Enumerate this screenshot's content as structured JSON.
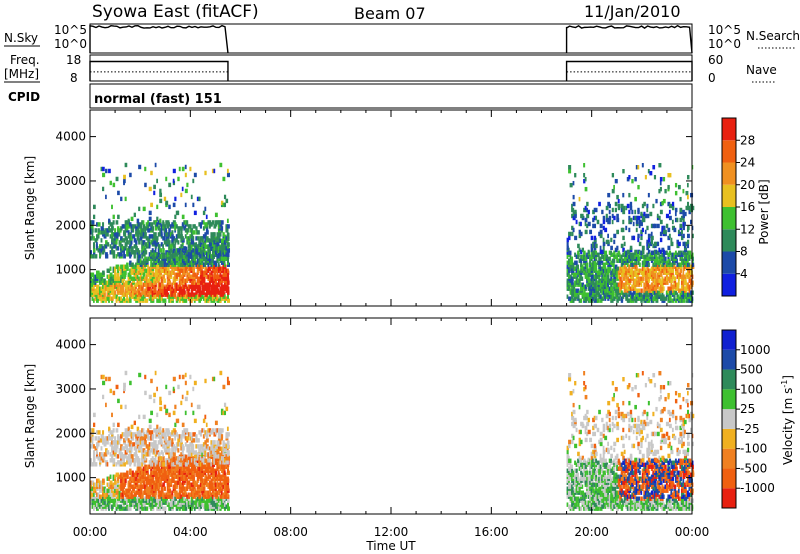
{
  "header": {
    "title": "Syowa East (fitACF)",
    "beam": "Beam 07",
    "date": "11/Jan/2010"
  },
  "noise_panel": {
    "left_label": "N.Sky",
    "right_label": "N.Search",
    "left_ticks": [
      "10^5",
      "10^0"
    ],
    "right_ticks": [
      "10^5",
      "10^0"
    ],
    "level": 0.9
  },
  "freq_panel": {
    "left_label_1": "Freq.",
    "left_label_2": "[MHz]",
    "left_ticks": [
      "18",
      "8"
    ],
    "right_ticks": [
      "60",
      "0"
    ],
    "right_label": "Nave",
    "freq_level": 0.35,
    "nave_level": 0.75
  },
  "cpid_panel": {
    "label": "CPID",
    "text": "normal (fast) 151"
  },
  "colors": {
    "power": [
      "#1020e0",
      "#1c4aa8",
      "#2e8a5a",
      "#3ec030",
      "#e8c020",
      "#f09020",
      "#f06010",
      "#e82010"
    ],
    "velocity": [
      "#1020d0",
      "#1c4aa8",
      "#2e8a5a",
      "#3ec030",
      "#c8c8c8",
      "#f0b020",
      "#f08020",
      "#f06010",
      "#e82010"
    ]
  },
  "chart_data": [
    {
      "type": "heatmap",
      "panel": "power",
      "ylabel": "Slant Range [km]",
      "xlabel": "Time UT",
      "xlim": [
        0,
        24
      ],
      "ylim": [
        180,
        4600
      ],
      "yticks": [
        1000,
        2000,
        3000,
        4000
      ],
      "xticks": [
        0,
        4,
        8,
        12,
        16,
        20,
        24
      ],
      "xticklabels": [
        "00:00",
        "04:00",
        "08:00",
        "12:00",
        "16:00",
        "20:00",
        "00:00"
      ],
      "data_intervals": [
        [
          0,
          5.5
        ],
        [
          19,
          24
        ]
      ],
      "colorbar": {
        "label": "Power [dB]",
        "range": [
          0,
          32
        ],
        "ticks": [
          "4",
          "8",
          "12",
          "16",
          "20",
          "24",
          "28"
        ]
      }
    },
    {
      "type": "heatmap",
      "panel": "velocity",
      "ylabel": "Slant Range [km]",
      "xlabel": "Time UT",
      "xlim": [
        0,
        24
      ],
      "ylim": [
        180,
        4600
      ],
      "yticks": [
        1000,
        2000,
        3000,
        4000
      ],
      "xticks": [
        0,
        4,
        8,
        12,
        16,
        20,
        24
      ],
      "xticklabels": [
        "00:00",
        "04:00",
        "08:00",
        "12:00",
        "16:00",
        "20:00",
        "00:00"
      ],
      "data_intervals": [
        [
          0,
          5.5
        ],
        [
          19,
          24
        ]
      ],
      "colorbar": {
        "label": "Velocity [m s",
        "label_sup": "-1",
        "label_end": "]",
        "ticks": [
          "1000",
          "500",
          "100",
          "25",
          "-25",
          "-100",
          "-500",
          "-1000"
        ]
      }
    }
  ],
  "x_axis": {
    "label": "Time UT",
    "ticklabels": [
      "00:00",
      "04:00",
      "08:00",
      "12:00",
      "16:00",
      "20:00",
      "00:00"
    ]
  }
}
